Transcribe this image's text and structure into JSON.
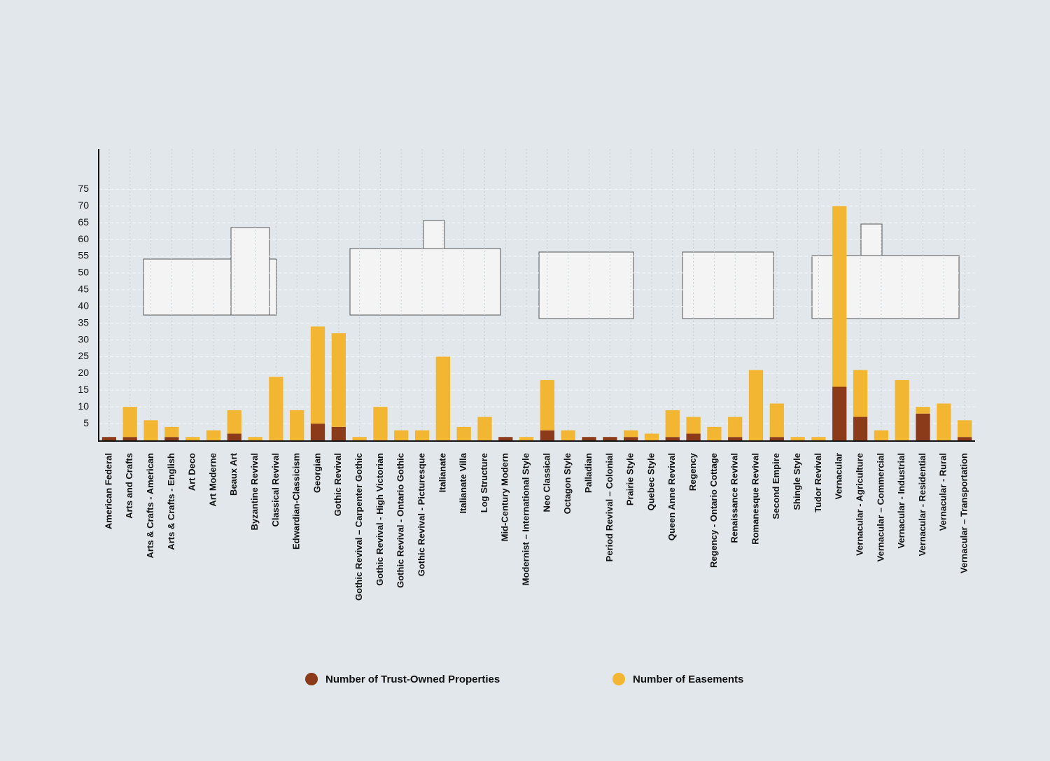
{
  "chart_data": {
    "type": "bar",
    "stacked": true,
    "categories": [
      "American Federal",
      "Arts and Crafts",
      "Arts & Crafts - American",
      "Arts & Crafts - English",
      "Art Deco",
      "Art Moderne",
      "Beaux Art",
      "Byzantine Revival",
      "Classical Revival",
      "Edwardian-Classicism",
      "Georgian",
      "Gothic Revival",
      "Gothic Revival – Carpenter Gothic",
      "Gothic Revival - High Victorian",
      "Gothic Revival - Ontario Gothic",
      "Gothic Revival - Picturesque",
      "Italianate",
      "Italianate Villa",
      "Log Structure",
      "Mid-Century Modern",
      "Modernist – International Style",
      "Neo Classical",
      "Octagon Style",
      "Palladian",
      "Period Revival – Colonial",
      "Prairie Style",
      "Quebec Style",
      "Queen Anne Revival",
      "Regency",
      "Regency - Ontario Cottage",
      "Renaissance Revival",
      "Romanesque Revival",
      "Second Empire",
      "Shingle Style",
      "Tudor Revival",
      "Vernacular",
      "Vernacular - Agriculture",
      "Vernacular – Commercial",
      "Vernacular - Industrial",
      "Vernacular - Residential",
      "Vernacular - Rural",
      "Vernacular – Transportation"
    ],
    "series": [
      {
        "name": "Number of Trust-Owned Properties",
        "color": "#8b3a1a",
        "values": [
          1,
          1,
          0,
          1,
          0,
          0,
          2,
          0,
          0,
          0,
          5,
          4,
          0,
          0,
          0,
          0,
          0,
          0,
          0,
          1,
          0,
          3,
          0,
          1,
          1,
          1,
          0,
          1,
          2,
          0,
          1,
          0,
          1,
          0,
          0,
          16,
          7,
          0,
          0,
          8,
          0,
          1
        ]
      },
      {
        "name": "Number of Easements",
        "color": "#f2b632",
        "values": [
          0,
          9,
          6,
          3,
          1,
          3,
          7,
          1,
          19,
          9,
          29,
          28,
          1,
          10,
          3,
          3,
          25,
          4,
          7,
          0,
          1,
          15,
          3,
          0,
          0,
          2,
          2,
          8,
          5,
          4,
          6,
          21,
          10,
          1,
          1,
          54,
          14,
          3,
          18,
          2,
          11,
          5
        ]
      }
    ],
    "ylim": [
      0,
      87
    ],
    "yticks": [
      5,
      10,
      15,
      20,
      25,
      30,
      35,
      40,
      45,
      50,
      55,
      60,
      65,
      70,
      75
    ],
    "grid": true
  }
}
